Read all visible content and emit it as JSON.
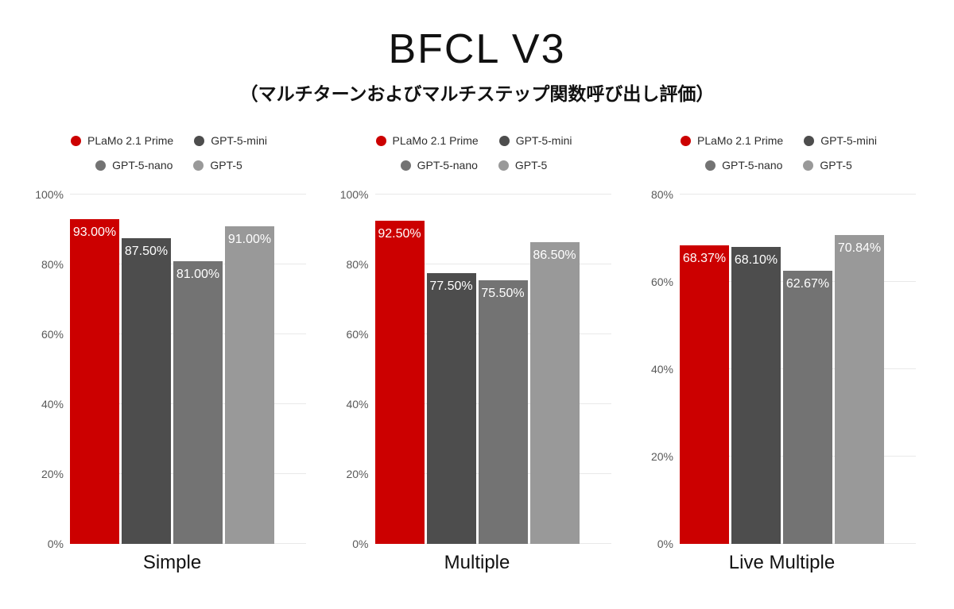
{
  "page": {
    "title": "BFCL V3",
    "subtitle": "（マルチターンおよびマルチステップ関数呼び出し評価）"
  },
  "style": {
    "accent_red": "#CC0000",
    "gray_dark": "#4D4D4D",
    "gray_mid": "#737373",
    "gray_light": "#999999",
    "grid_color": "#E9E9E9",
    "tick_text_color": "#595959",
    "bar_label_color": "#FFFFFF",
    "background": "#FFFFFF"
  },
  "series": [
    {
      "name": "PLaMo 2.1 Prime",
      "color": "#CC0000"
    },
    {
      "name": "GPT-5-mini",
      "color": "#4D4D4D"
    },
    {
      "name": "GPT-5-nano",
      "color": "#737373"
    },
    {
      "name": "GPT-5",
      "color": "#999999"
    }
  ],
  "chart_data": [
    {
      "type": "bar",
      "category": "Simple",
      "series_names": [
        "PLaMo 2.1 Prime",
        "GPT-5-mini",
        "GPT-5-nano",
        "GPT-5"
      ],
      "values": [
        93.0,
        87.5,
        81.0,
        91.0
      ],
      "bar_labels": [
        "93.00%",
        "87.50%",
        "81.00%",
        "91.00%"
      ],
      "ylim": [
        0,
        100
      ],
      "yticks": [
        {
          "v": 100,
          "label": "100%"
        },
        {
          "v": 80,
          "label": "80%"
        },
        {
          "v": 60,
          "label": "60%"
        },
        {
          "v": 40,
          "label": "40%"
        },
        {
          "v": 20,
          "label": "20%"
        },
        {
          "v": 0,
          "label": "0%"
        }
      ],
      "grid": true,
      "legend_position": "top"
    },
    {
      "type": "bar",
      "category": "Multiple",
      "series_names": [
        "PLaMo 2.1 Prime",
        "GPT-5-mini",
        "GPT-5-nano",
        "GPT-5"
      ],
      "values": [
        92.5,
        77.5,
        75.5,
        86.5
      ],
      "bar_labels": [
        "92.50%",
        "77.50%",
        "75.50%",
        "86.50%"
      ],
      "ylim": [
        0,
        100
      ],
      "yticks": [
        {
          "v": 100,
          "label": "100%"
        },
        {
          "v": 80,
          "label": "80%"
        },
        {
          "v": 60,
          "label": "60%"
        },
        {
          "v": 40,
          "label": "40%"
        },
        {
          "v": 20,
          "label": "20%"
        },
        {
          "v": 0,
          "label": "0%"
        }
      ],
      "grid": true,
      "legend_position": "top"
    },
    {
      "type": "bar",
      "category": "Live Multiple",
      "series_names": [
        "PLaMo 2.1 Prime",
        "GPT-5-mini",
        "GPT-5-nano",
        "GPT-5"
      ],
      "values": [
        68.37,
        68.1,
        62.67,
        70.84
      ],
      "bar_labels": [
        "68.37%",
        "68.10%",
        "62.67%",
        "70.84%"
      ],
      "ylim": [
        0,
        80
      ],
      "yticks": [
        {
          "v": 80,
          "label": "80%"
        },
        {
          "v": 60,
          "label": "60%"
        },
        {
          "v": 40,
          "label": "40%"
        },
        {
          "v": 20,
          "label": "20%"
        },
        {
          "v": 0,
          "label": "0%"
        }
      ],
      "grid": true,
      "legend_position": "top"
    }
  ]
}
